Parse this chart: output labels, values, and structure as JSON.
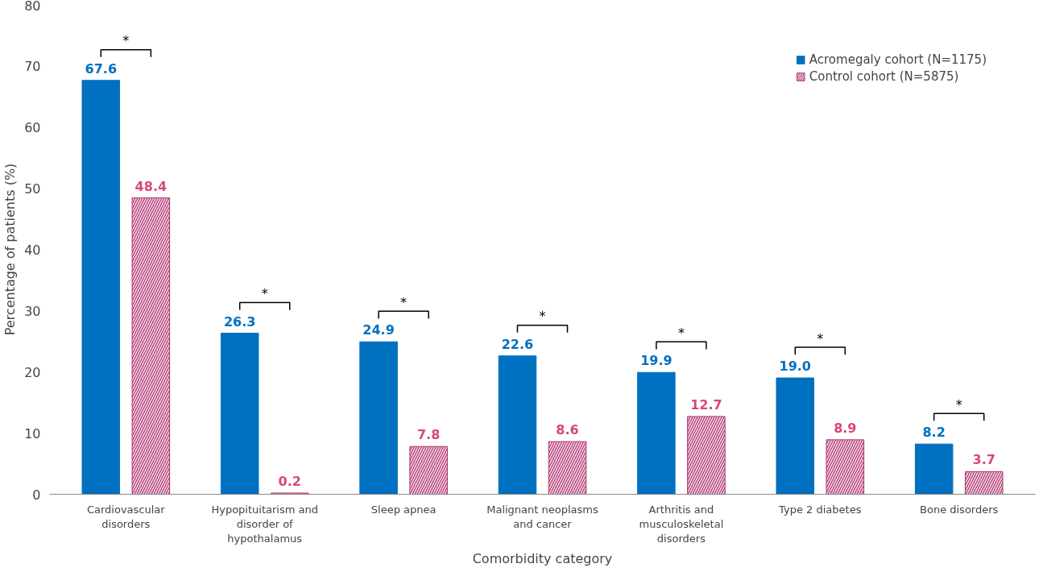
{
  "chart_data": {
    "type": "bar",
    "xlabel": "Comorbidity category",
    "ylabel": "Percentage of patients (%)",
    "categories": [
      "Cardiovascular\ndisorders",
      "Hypopituitarism and\ndisorder of\nhypothalamus",
      "Sleep apnea",
      "Malignant neoplasms\nand cancer",
      "Arthritis and\nmusculoskeletal\ndisorders",
      "Type 2 diabetes",
      "Bone disorders"
    ],
    "series": [
      {
        "name": "Acromegaly cohort (N=1175)",
        "color": "#0070c0",
        "values": [
          67.6,
          26.3,
          24.9,
          22.6,
          19.9,
          19.0,
          8.2
        ],
        "value_labels": [
          "67.6",
          "26.3",
          "24.9",
          "22.6",
          "19.9",
          "19.0",
          "8.2"
        ]
      },
      {
        "name": "Control cohort (N=5875)",
        "color": "#b0306e",
        "values": [
          48.4,
          0.2,
          7.8,
          8.6,
          12.7,
          8.9,
          3.7
        ],
        "value_labels": [
          "48.4",
          "0.2",
          "7.8",
          "8.6",
          "12.7",
          "8.9",
          "3.7"
        ]
      }
    ],
    "ylim": [
      0,
      80
    ],
    "yticks": [
      0,
      10,
      20,
      30,
      40,
      50,
      60,
      70,
      80
    ],
    "grid": false,
    "legend": "top right",
    "annotations": [
      "*",
      "*",
      "*",
      "*",
      "*",
      "*",
      "*"
    ]
  }
}
